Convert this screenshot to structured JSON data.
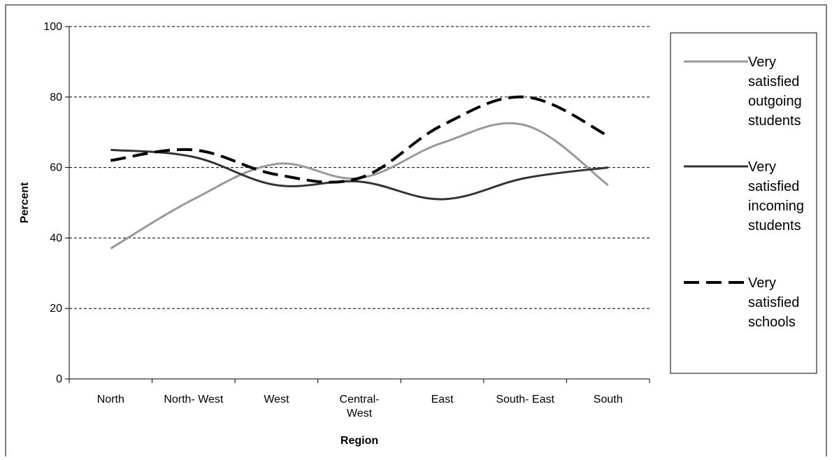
{
  "chart_data": {
    "type": "line",
    "categories": [
      "North",
      "North- West",
      "West",
      "Central-\nWest",
      "East",
      "South- East",
      "South"
    ],
    "series": [
      {
        "name": "Very satisfied outgoing students",
        "values": [
          37,
          51,
          61,
          57,
          67,
          72,
          55
        ],
        "color": "#999999",
        "dash": "solid"
      },
      {
        "name": "Very satisfied incoming students",
        "values": [
          65,
          63,
          55,
          56,
          51,
          57,
          60
        ],
        "color": "#333333",
        "dash": "solid"
      },
      {
        "name": "Very satisfied schools",
        "values": [
          62,
          65,
          58,
          57,
          72,
          80,
          69
        ],
        "color": "#000000",
        "dash": "dashed"
      }
    ],
    "legend_lines": [
      [
        "Very",
        "satisfied",
        "outgoing",
        "students"
      ],
      [
        "Very",
        "satisfied",
        "incoming",
        "students"
      ],
      [
        "Very",
        "satisfied",
        "schools"
      ]
    ],
    "xlabel": "Region",
    "ylabel": "Percent",
    "ylim": [
      0,
      100
    ],
    "yticks": [
      0,
      20,
      40,
      60,
      80,
      100
    ],
    "grid": "horizontal dashed",
    "legend_position": "right"
  }
}
